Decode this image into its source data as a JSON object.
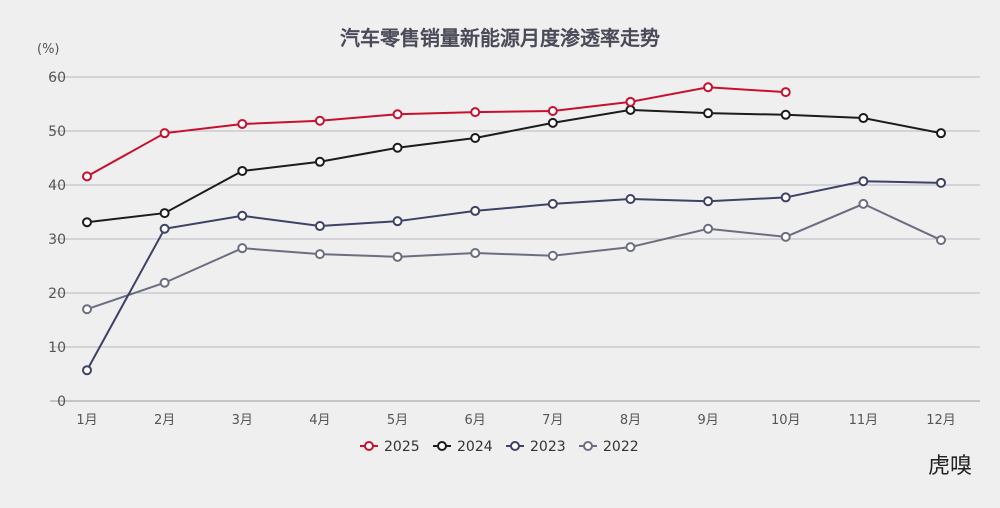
{
  "chart_data": {
    "type": "line",
    "title": "汽车零售销量新能源月度渗透率走势",
    "ylabel": "(%)",
    "xlabel": "",
    "categories": [
      "1月",
      "2月",
      "3月",
      "4月",
      "5月",
      "6月",
      "7月",
      "8月",
      "9月",
      "10月",
      "11月",
      "12月"
    ],
    "ylim": [
      0,
      60
    ],
    "yticks": [
      0,
      10,
      20,
      30,
      40,
      50,
      60
    ],
    "grid": true,
    "legend": "bottom",
    "series": [
      {
        "name": "2025",
        "color": "#c8102e",
        "values": [
          41.6,
          49.6,
          51.3,
          51.9,
          53.1,
          53.5,
          53.7,
          55.4,
          58.1,
          57.2,
          null,
          null
        ]
      },
      {
        "name": "2024",
        "color": "#1c1c1c",
        "values": [
          33.1,
          34.8,
          42.6,
          44.3,
          46.9,
          48.7,
          51.5,
          53.9,
          53.3,
          53.0,
          52.4,
          49.6
        ]
      },
      {
        "name": "2023",
        "color": "#3d4266",
        "values": [
          5.7,
          31.9,
          34.3,
          32.4,
          33.3,
          35.2,
          36.5,
          37.4,
          37.0,
          37.7,
          40.7,
          40.4
        ]
      },
      {
        "name": "2022",
        "color": "#6b6e80",
        "values": [
          17.0,
          21.9,
          28.3,
          27.2,
          26.7,
          27.4,
          26.9,
          28.5,
          31.9,
          30.4,
          36.5,
          29.8
        ]
      }
    ]
  },
  "watermark": "虎嗅"
}
